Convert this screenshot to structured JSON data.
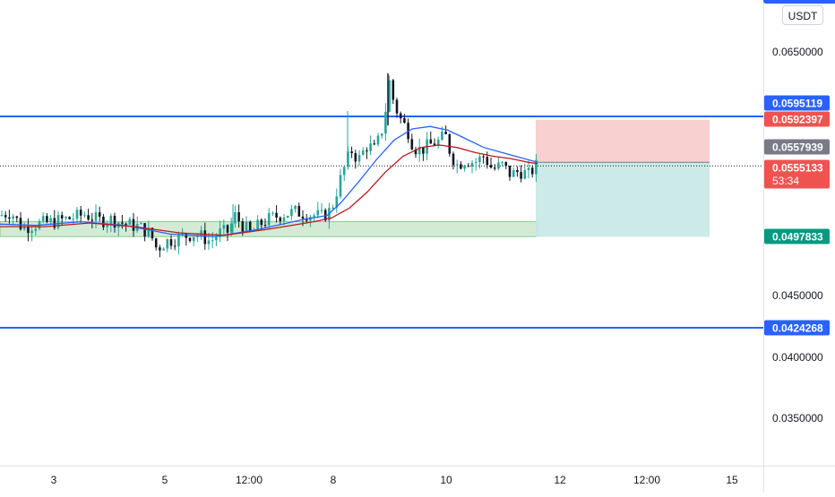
{
  "quote_currency": "USDT",
  "colors": {
    "up": "#26a69a",
    "down": "#131722",
    "horizontal_line": "#2962ff",
    "sma_blue": "#2962ff",
    "sma_red": "#b71c1c",
    "support_zone_fill": "#c8e6c9",
    "support_zone_border": "#4caf50",
    "stop_zone": "#f8c8c8",
    "target_zone": "#c5e8e6",
    "price_line": "#131722"
  },
  "chart_data": {
    "type": "candlestick",
    "title": "",
    "xlabel": "",
    "ylabel": "",
    "ylim": [
      0.03,
      0.067
    ],
    "x_ticks": [
      "3",
      "5",
      "12:00",
      "8",
      "10",
      "12",
      "12:00",
      "15"
    ],
    "y_ticks": [
      "0.0650000",
      "0.0450000",
      "0.0400000",
      "0.0350000"
    ],
    "price_tags": [
      {
        "label": "0.0595119",
        "value": 0.0595119,
        "role": "horizontal-line",
        "color": "#2962ff"
      },
      {
        "label": "0.0592397",
        "value": 0.0592397,
        "role": "stop-loss",
        "color": "#ef5350"
      },
      {
        "label": "0.0557939",
        "value": 0.0557939,
        "role": "moving-average",
        "color": "#787b86"
      },
      {
        "label": "0.0555133",
        "value": 0.0555133,
        "role": "last-price",
        "color": "#ef5350",
        "countdown": "53:34"
      },
      {
        "label": "0.0497833",
        "value": 0.0497833,
        "role": "take-profit",
        "color": "#089981"
      },
      {
        "label": "0.0424268",
        "value": 0.0424268,
        "role": "horizontal-line",
        "color": "#2962ff"
      }
    ],
    "horizontal_lines": [
      0.0595119,
      0.0424268
    ],
    "support_zone": {
      "top": 0.051,
      "bottom": 0.0498
    },
    "position": {
      "entry": 0.0558,
      "stop": 0.0592397,
      "target": 0.0497833
    },
    "last_price": 0.0555133,
    "close_path": [
      [
        0,
        0.0515
      ],
      [
        12,
        0.0518
      ],
      [
        25,
        0.0505
      ],
      [
        40,
        0.0508
      ],
      [
        60,
        0.051
      ],
      [
        80,
        0.0513
      ],
      [
        95,
        0.0516
      ],
      [
        110,
        0.0511
      ],
      [
        125,
        0.0512
      ],
      [
        140,
        0.0508
      ],
      [
        155,
        0.0506
      ],
      [
        168,
        0.05
      ],
      [
        175,
        0.0488
      ],
      [
        185,
        0.0494
      ],
      [
        200,
        0.0497
      ],
      [
        215,
        0.05
      ],
      [
        225,
        0.0498
      ],
      [
        235,
        0.0494
      ],
      [
        245,
        0.0501
      ],
      [
        255,
        0.0502
      ],
      [
        262,
        0.0515
      ],
      [
        270,
        0.0508
      ],
      [
        280,
        0.05
      ],
      [
        290,
        0.0508
      ],
      [
        300,
        0.0512
      ],
      [
        315,
        0.0516
      ],
      [
        330,
        0.0518
      ],
      [
        345,
        0.0516
      ],
      [
        360,
        0.0514
      ],
      [
        370,
        0.052
      ],
      [
        378,
        0.054
      ],
      [
        385,
        0.0555
      ],
      [
        392,
        0.0568
      ],
      [
        400,
        0.056
      ],
      [
        410,
        0.0572
      ],
      [
        418,
        0.0568
      ],
      [
        425,
        0.058
      ],
      [
        430,
        0.0598
      ],
      [
        434,
        0.0625
      ],
      [
        440,
        0.0605
      ],
      [
        447,
        0.0593
      ],
      [
        455,
        0.0584
      ],
      [
        462,
        0.057
      ],
      [
        470,
        0.0568
      ],
      [
        480,
        0.0572
      ],
      [
        490,
        0.0575
      ],
      [
        497,
        0.058
      ],
      [
        503,
        0.0565
      ],
      [
        510,
        0.0556
      ],
      [
        520,
        0.056
      ],
      [
        530,
        0.0558
      ],
      [
        540,
        0.0563
      ],
      [
        550,
        0.0552
      ],
      [
        560,
        0.0556
      ],
      [
        570,
        0.0548
      ],
      [
        580,
        0.0551
      ],
      [
        590,
        0.0548
      ],
      [
        598,
        0.0555
      ]
    ],
    "sma_fast_path": [
      [
        0,
        0.0508
      ],
      [
        40,
        0.0507
      ],
      [
        90,
        0.051
      ],
      [
        140,
        0.0507
      ],
      [
        190,
        0.05
      ],
      [
        240,
        0.0498
      ],
      [
        290,
        0.0504
      ],
      [
        340,
        0.0512
      ],
      [
        365,
        0.0515
      ],
      [
        380,
        0.0525
      ],
      [
        400,
        0.0542
      ],
      [
        420,
        0.056
      ],
      [
        440,
        0.0576
      ],
      [
        460,
        0.0585
      ],
      [
        480,
        0.0587
      ],
      [
        500,
        0.0584
      ],
      [
        520,
        0.0577
      ],
      [
        540,
        0.057
      ],
      [
        560,
        0.0566
      ],
      [
        580,
        0.0562
      ],
      [
        600,
        0.0558
      ]
    ],
    "sma_slow_path": [
      [
        0,
        0.0506
      ],
      [
        50,
        0.0506
      ],
      [
        100,
        0.0509
      ],
      [
        150,
        0.0506
      ],
      [
        200,
        0.0501
      ],
      [
        250,
        0.0499
      ],
      [
        300,
        0.0504
      ],
      [
        350,
        0.051
      ],
      [
        370,
        0.0513
      ],
      [
        390,
        0.0521
      ],
      [
        410,
        0.0534
      ],
      [
        430,
        0.055
      ],
      [
        450,
        0.0563
      ],
      [
        470,
        0.057
      ],
      [
        490,
        0.0572
      ],
      [
        510,
        0.057
      ],
      [
        530,
        0.0566
      ],
      [
        550,
        0.0563
      ],
      [
        570,
        0.0561
      ],
      [
        590,
        0.0558
      ],
      [
        600,
        0.0557
      ]
    ]
  }
}
